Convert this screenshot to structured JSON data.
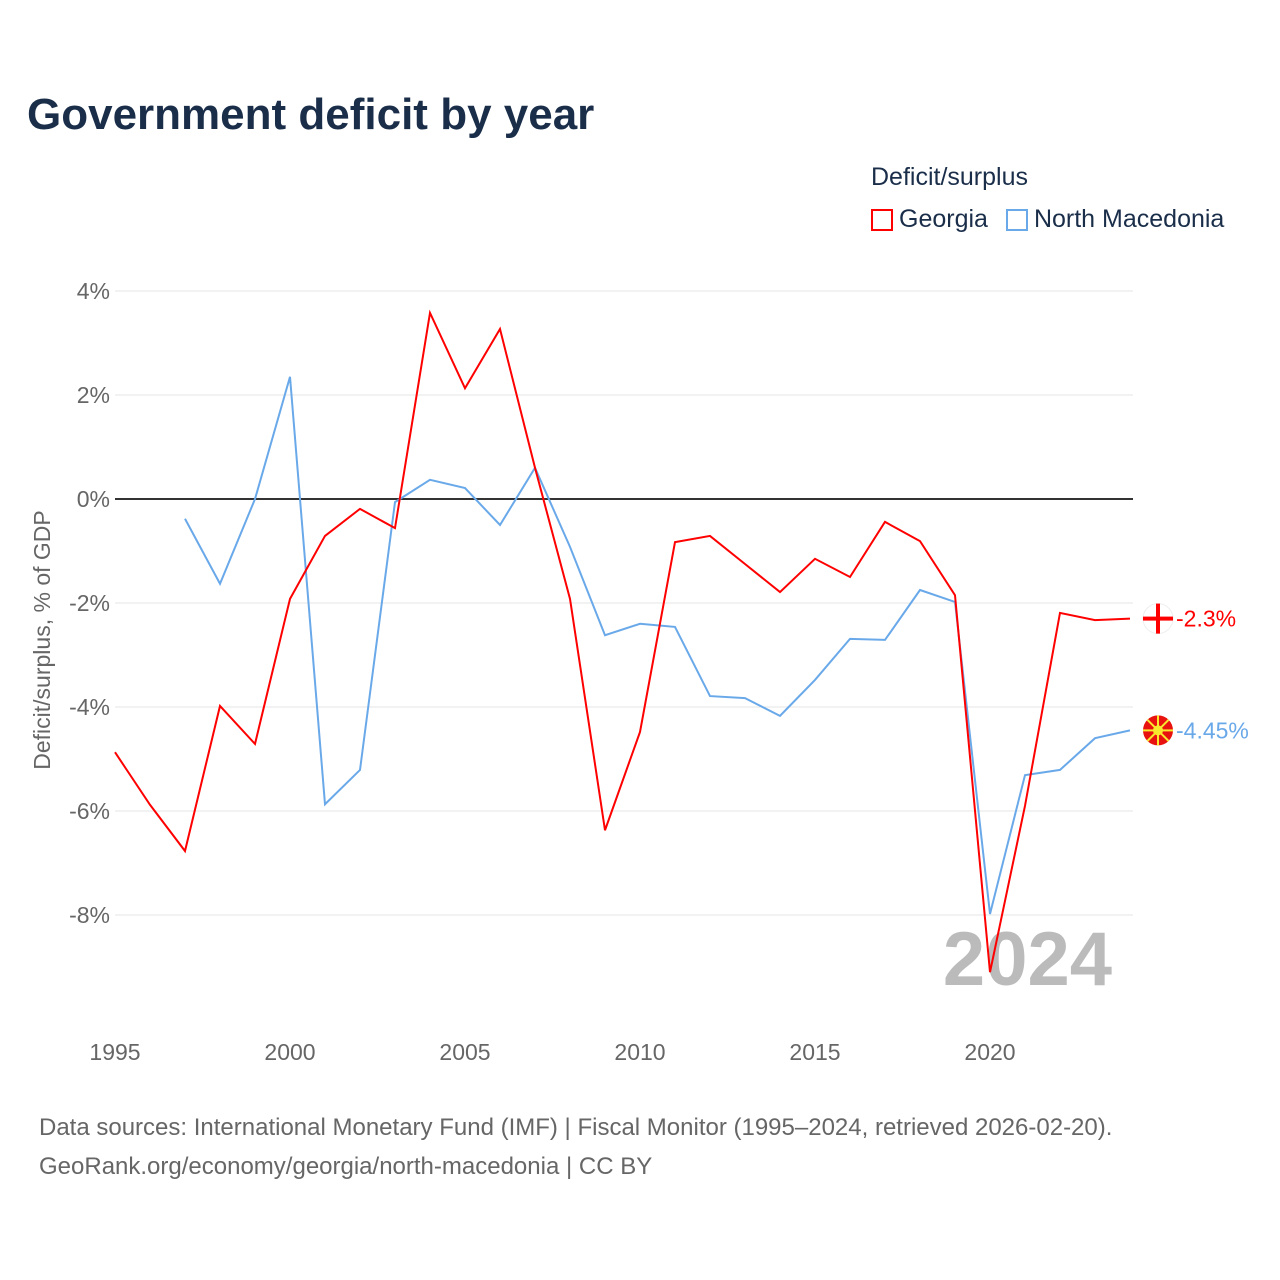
{
  "title": "Government deficit by year",
  "legend": {
    "title": "Deficit/surplus",
    "items": [
      {
        "label": "Georgia",
        "color": "#ff0000"
      },
      {
        "label": "North Macedonia",
        "color": "#6aa9e9"
      }
    ]
  },
  "source": {
    "line1": "Data sources: International Monetary Fund (IMF) | Fiscal Monitor (1995–2024, retrieved 2026-02-20).",
    "line2": "GeoRank.org/economy/georgia/north-macedonia | CC BY"
  },
  "chart_data": {
    "type": "line",
    "title": "Government deficit by year",
    "ylabel": "Deficit/surplus, % of GDP",
    "xlabel": "",
    "xlim": [
      1995,
      2024
    ],
    "ylim": [
      -10,
      4
    ],
    "xticks": [
      "1995",
      "2000",
      "2005",
      "2010",
      "2015",
      "2020"
    ],
    "yticks": [
      {
        "v": 4,
        "label": "4%"
      },
      {
        "v": 2,
        "label": "2%"
      },
      {
        "v": 0,
        "label": "0%"
      },
      {
        "v": -2,
        "label": "-2%"
      },
      {
        "v": -4,
        "label": "-4%"
      },
      {
        "v": -6,
        "label": "-6%"
      },
      {
        "v": -8,
        "label": "-8%"
      }
    ],
    "year_label": "2024",
    "series": [
      {
        "name": "Georgia",
        "color": "#ff0000",
        "end_label": "-2.3%",
        "x": [
          1995,
          1996,
          1997,
          1998,
          1999,
          2000,
          2001,
          2002,
          2003,
          2004,
          2005,
          2006,
          2007,
          2008,
          2009,
          2010,
          2011,
          2012,
          2013,
          2014,
          2015,
          2016,
          2017,
          2018,
          2019,
          2020,
          2021,
          2022,
          2023,
          2024
        ],
        "values": [
          -4.87,
          -5.88,
          -6.77,
          -3.98,
          -4.71,
          -1.92,
          -0.71,
          -0.19,
          -0.56,
          3.58,
          2.13,
          3.27,
          0.6,
          -1.92,
          -6.37,
          -4.48,
          -0.83,
          -0.71,
          -1.25,
          -1.79,
          -1.15,
          -1.5,
          -0.44,
          -0.81,
          -1.85,
          -9.1,
          -5.9,
          -2.19,
          -2.33,
          -2.3
        ]
      },
      {
        "name": "North Macedonia",
        "color": "#6aa9e9",
        "end_label": "-4.45%",
        "x": [
          1997,
          1998,
          1999,
          2000,
          2001,
          2002,
          2003,
          2004,
          2005,
          2006,
          2007,
          2008,
          2009,
          2010,
          2011,
          2012,
          2013,
          2014,
          2015,
          2016,
          2017,
          2018,
          2019,
          2020,
          2021,
          2022,
          2023,
          2024
        ],
        "values": [
          -0.38,
          -1.63,
          0,
          2.35,
          -5.87,
          -5.21,
          -0.06,
          0.37,
          0.21,
          -0.5,
          0.6,
          -0.92,
          -2.62,
          -2.4,
          -2.46,
          -3.79,
          -3.83,
          -4.17,
          -3.48,
          -2.69,
          -2.71,
          -1.75,
          -1.98,
          -7.98,
          -5.31,
          -5.21,
          -4.6,
          -4.45
        ]
      }
    ]
  }
}
